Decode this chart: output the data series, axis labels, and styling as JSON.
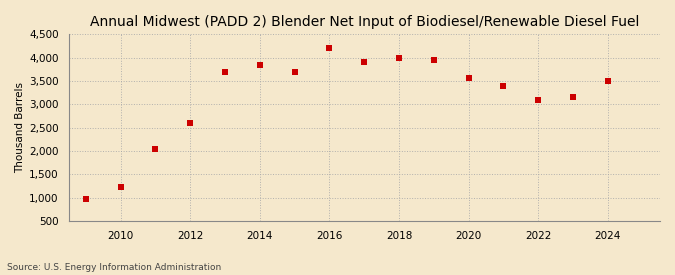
{
  "title": "Annual Midwest (PADD 2) Blender Net Input of Biodiesel/Renewable Diesel Fuel",
  "ylabel": "Thousand Barrels",
  "source": "Source: U.S. Energy Information Administration",
  "years": [
    2009,
    2010,
    2011,
    2012,
    2013,
    2014,
    2015,
    2016,
    2017,
    2018,
    2019,
    2020,
    2021,
    2022,
    2023,
    2024
  ],
  "values": [
    980,
    1220,
    2050,
    2600,
    3700,
    3850,
    3700,
    4200,
    3900,
    4000,
    3950,
    3560,
    3390,
    3100,
    3150,
    3510
  ],
  "marker_color": "#CC0000",
  "marker_size": 22,
  "background_color": "#F5E8CC",
  "plot_bg_color": "#F5E8CC",
  "grid_color": "#AAAAAA",
  "ylim": [
    500,
    4500
  ],
  "yticks": [
    500,
    1000,
    1500,
    2000,
    2500,
    3000,
    3500,
    4000,
    4500
  ],
  "xlim": [
    2008.5,
    2025.5
  ],
  "xticks": [
    2010,
    2012,
    2014,
    2016,
    2018,
    2020,
    2022,
    2024
  ],
  "title_fontsize": 10,
  "label_fontsize": 7.5,
  "tick_fontsize": 7.5,
  "source_fontsize": 6.5
}
